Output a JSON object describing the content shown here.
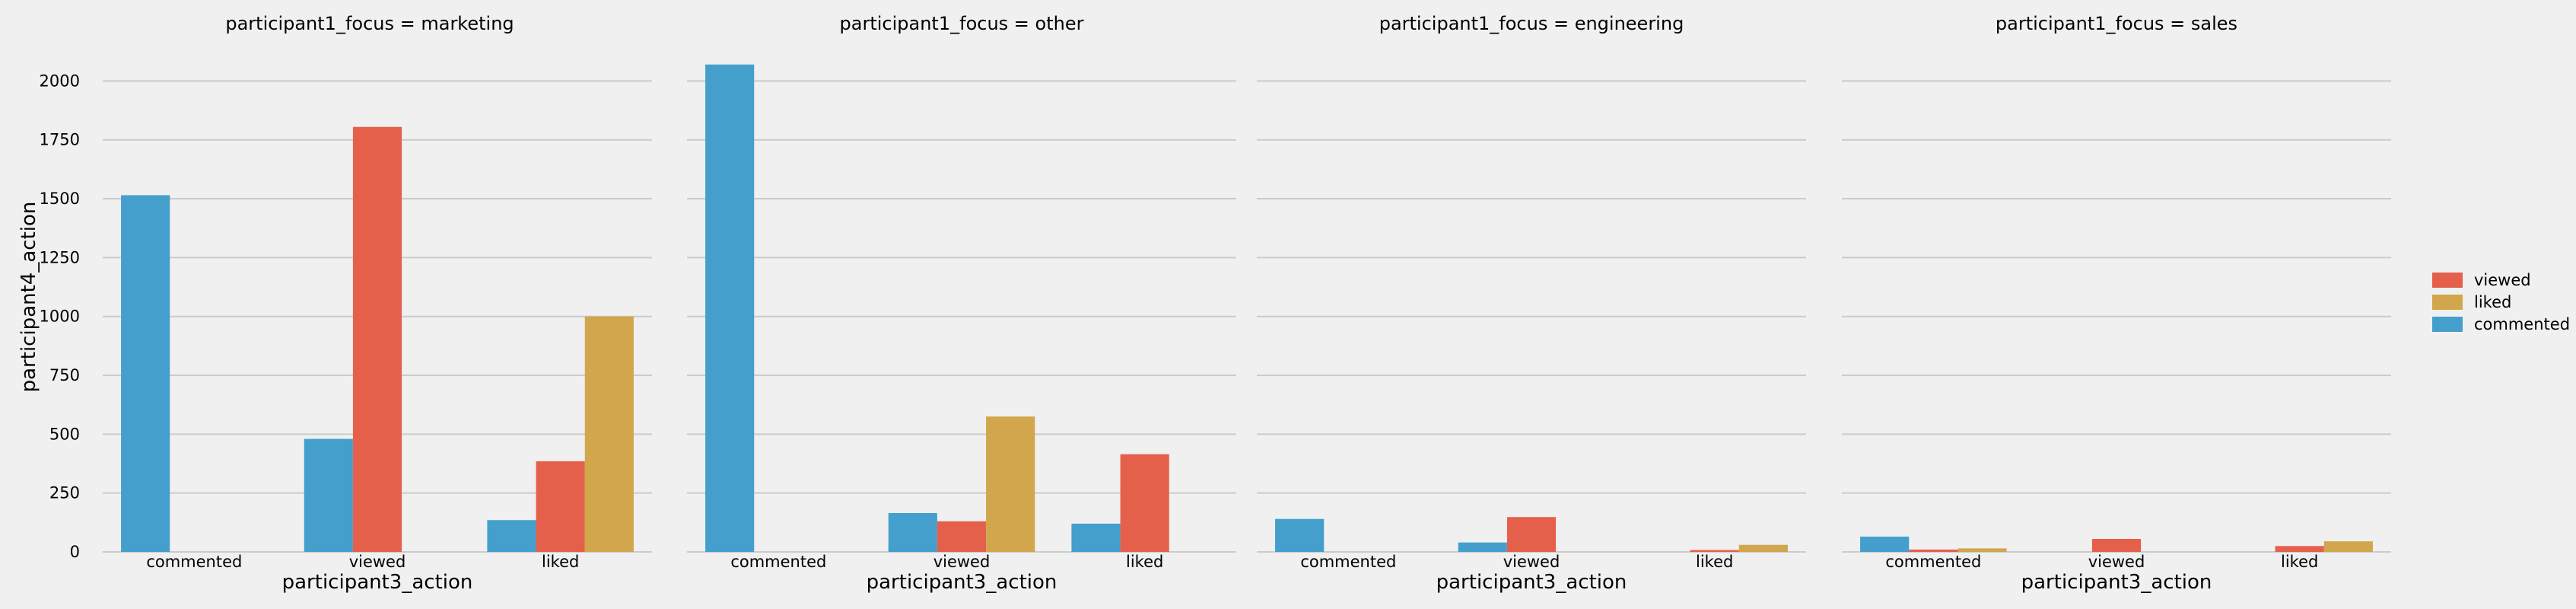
{
  "chart_data": {
    "type": "bar",
    "categories": [
      "commented",
      "viewed",
      "liked"
    ],
    "xlabel": "participant3_action",
    "ylabel": "participant4_action",
    "ylim": [
      0,
      2150
    ],
    "yticks": [
      0,
      250,
      500,
      750,
      1000,
      1250,
      1500,
      1750,
      2000
    ],
    "grid": true,
    "legend_position": "right",
    "legend": [
      {
        "name": "viewed",
        "color": "#e5604a"
      },
      {
        "name": "liked",
        "color": "#d1a64c"
      },
      {
        "name": "commented",
        "color": "#449fcc"
      }
    ],
    "hue_order": [
      "commented",
      "viewed",
      "liked"
    ],
    "colors": {
      "commented": "#449fcc",
      "viewed": "#e5604a",
      "liked": "#d1a64c"
    },
    "panels": [
      {
        "title": "participant1_focus = marketing",
        "values": {
          "commented": {
            "commented": 1515,
            "viewed": 0,
            "liked": 0
          },
          "viewed": {
            "commented": 480,
            "viewed": 1805,
            "liked": 0
          },
          "liked": {
            "commented": 135,
            "viewed": 385,
            "liked": 1000
          }
        }
      },
      {
        "title": "participant1_focus = other",
        "values": {
          "commented": {
            "commented": 2070,
            "viewed": 0,
            "liked": 0
          },
          "viewed": {
            "commented": 165,
            "viewed": 130,
            "liked": 575
          },
          "liked": {
            "commented": 120,
            "viewed": 415,
            "liked": 0
          }
        }
      },
      {
        "title": "participant1_focus = engineering",
        "values": {
          "commented": {
            "commented": 140,
            "viewed": 0,
            "liked": 0
          },
          "viewed": {
            "commented": 40,
            "viewed": 148,
            "liked": 0
          },
          "liked": {
            "commented": 0,
            "viewed": 8,
            "liked": 30
          }
        }
      },
      {
        "title": "participant1_focus = sales",
        "values": {
          "commented": {
            "commented": 65,
            "viewed": 10,
            "liked": 15
          },
          "viewed": {
            "commented": 0,
            "viewed": 55,
            "liked": 0
          },
          "liked": {
            "commented": 0,
            "viewed": 25,
            "liked": 45
          }
        }
      }
    ]
  }
}
